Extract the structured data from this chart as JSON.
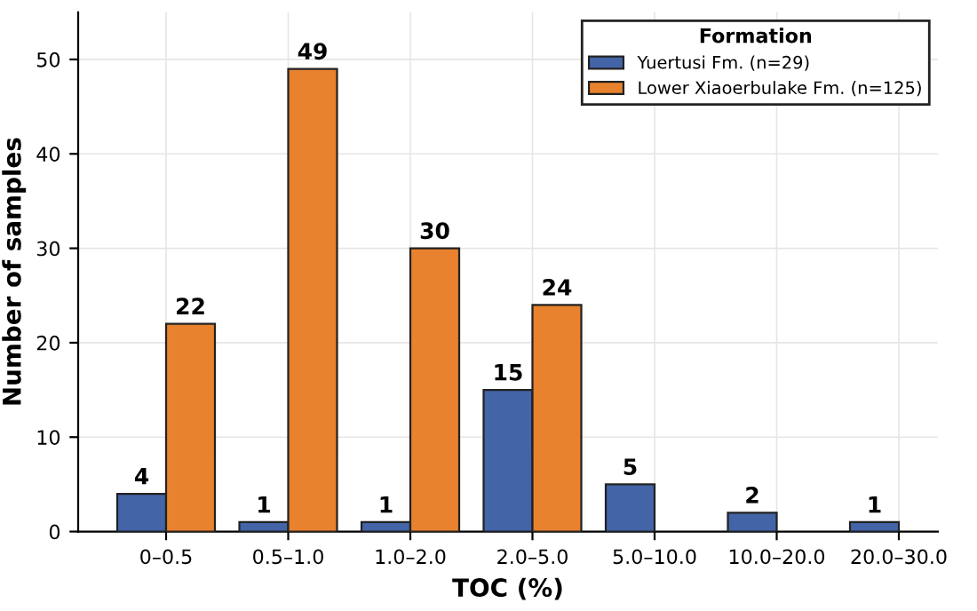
{
  "chart_data": {
    "type": "bar",
    "xlabel": "TOC (%)",
    "ylabel": "Number of samples",
    "legend_title": "Formation",
    "categories": [
      "0–0.5",
      "0.5–1.0",
      "1.0–2.0",
      "2.0–5.0",
      "5.0–10.0",
      "10.0–20.0",
      "20.0–30.0"
    ],
    "series": [
      {
        "name": "Yuertusi Fm. (n=29)",
        "color": "#4464a8",
        "values": [
          4,
          1,
          1,
          15,
          5,
          2,
          1
        ]
      },
      {
        "name": "Lower Xiaoerbulake Fm. (n=125)",
        "color": "#e8822e",
        "values": [
          22,
          49,
          30,
          24,
          null,
          null,
          null
        ]
      }
    ],
    "ylim": [
      0,
      55
    ],
    "yticks": [
      0,
      10,
      20,
      30,
      40,
      50
    ],
    "grid": true,
    "legend": "top right",
    "data_labels": true
  }
}
